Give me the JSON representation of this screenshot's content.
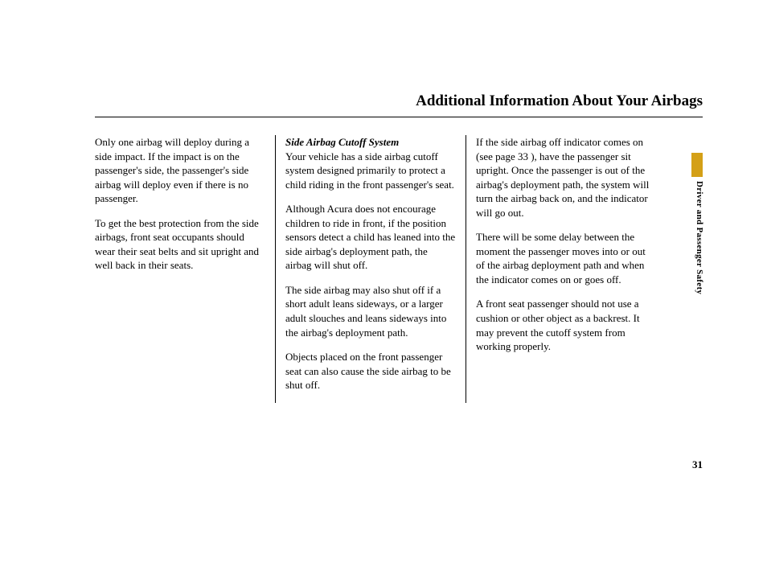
{
  "page": {
    "title": "Additional Information About Your Airbags",
    "section_label": "Driver and Passenger Safety",
    "page_number": "31",
    "accent_color": "#d4a017",
    "text_color": "#000000",
    "background_color": "#ffffff",
    "rule_color": "#000000",
    "body_fontsize": 13,
    "title_fontsize": 19
  },
  "col1": {
    "p1": "Only one airbag will deploy during a side impact. If the impact is on the passenger's side, the passenger's side airbag will deploy even if there is no passenger.",
    "p2": "To get the best protection from the side airbags, front seat occupants should wear their seat belts and sit upright and well back in their seats."
  },
  "col2": {
    "heading": "Side Airbag Cutoff System",
    "p1": "Your vehicle has a side airbag cutoff system designed primarily to protect a child riding in the front passenger's seat.",
    "p2": "Although Acura does not encourage children to ride in front, if the position sensors detect a child has leaned into the side airbag's deployment path, the airbag will shut off.",
    "p3": "The side airbag may also shut off if a short adult leans sideways, or a larger adult slouches and leans sideways into the airbag's deployment path.",
    "p4": "Objects placed on the front passenger seat can also cause the side airbag to be shut off."
  },
  "col3": {
    "p1": "If the side airbag off indicator comes on (see page 33 ), have the passenger sit upright. Once the passenger is out of the airbag's deployment path, the system will turn the airbag back on, and the indicator will go out.",
    "p2": "There will be some delay between the moment the passenger moves into or out of the airbag deployment path and when the indicator comes on or goes off.",
    "p3": "A front seat passenger should not use a cushion or other object as a backrest. It may prevent the cutoff system from working properly."
  }
}
